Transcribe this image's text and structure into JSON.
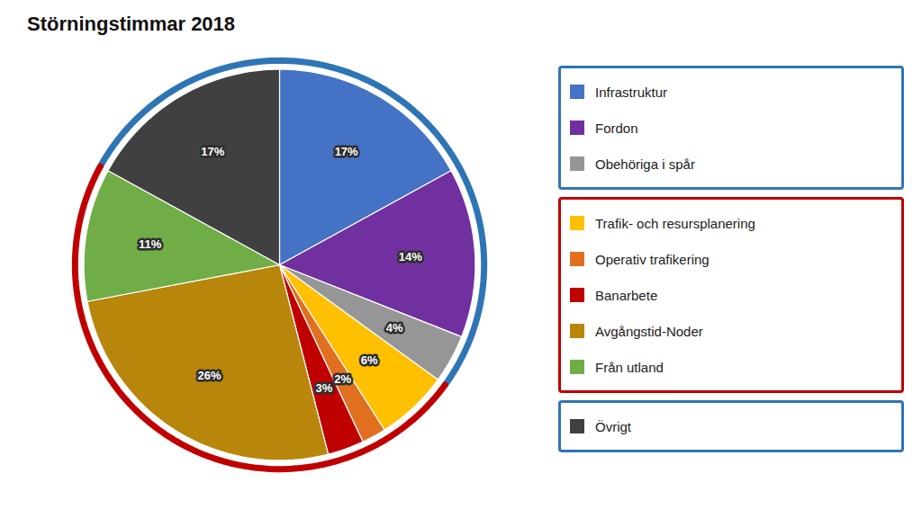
{
  "chart_data": {
    "type": "pie",
    "title": "Störningstimmar 2018",
    "categories": [
      "Infrastruktur",
      "Fordon",
      "Obehöriga i spår",
      "Trafik- och resursplanering",
      "Operativ trafikering",
      "Banarbete",
      "Avgångstid-Noder",
      "Från utland",
      "Övrigt"
    ],
    "values": [
      17,
      14,
      4,
      6,
      2,
      3,
      26,
      11,
      17
    ],
    "value_labels": [
      "17%",
      "14%",
      "4%",
      "6%",
      "2%",
      "3%",
      "26%",
      "11%",
      "17%"
    ],
    "colors": [
      "#4472C4",
      "#7030A0",
      "#969696",
      "#FFC000",
      "#E07020",
      "#C00000",
      "#B8860B",
      "#70AD47",
      "#404040"
    ],
    "data_labels": true,
    "legend": "right",
    "groups": [
      {
        "color": "#2E75B6",
        "categories": [
          "Infrastruktur",
          "Fordon",
          "Obehöriga i spår",
          "Övrigt"
        ]
      },
      {
        "color": "#C00000",
        "categories": [
          "Trafik- och resursplanering",
          "Operativ trafikering",
          "Banarbete",
          "Avgångstid-Noder",
          "Från utland"
        ]
      }
    ]
  }
}
